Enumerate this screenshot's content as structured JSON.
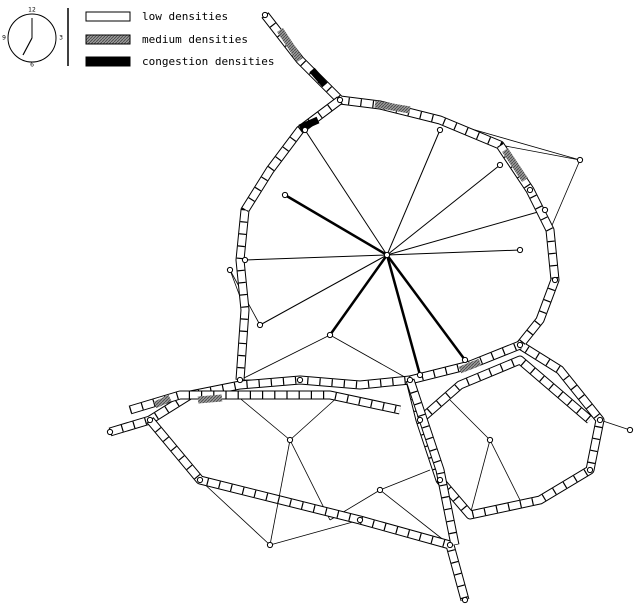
{
  "clock": {
    "labels": [
      "12",
      "3",
      "6",
      "9"
    ]
  },
  "legend": {
    "items": [
      "low densities",
      "medium densities",
      "congestion densities"
    ]
  }
}
